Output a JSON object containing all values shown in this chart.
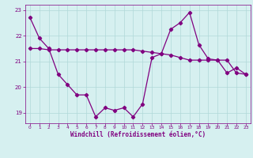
{
  "x": [
    0,
    1,
    2,
    3,
    4,
    5,
    6,
    7,
    8,
    9,
    10,
    11,
    12,
    13,
    14,
    15,
    16,
    17,
    18,
    19,
    20,
    21,
    22,
    23
  ],
  "windchill": [
    22.7,
    21.9,
    21.5,
    20.5,
    20.1,
    19.7,
    19.7,
    18.85,
    19.2,
    19.1,
    19.2,
    18.85,
    19.35,
    21.15,
    21.3,
    22.25,
    22.5,
    22.9,
    21.65,
    21.1,
    21.05,
    20.55,
    20.75,
    20.5
  ],
  "templine": [
    21.5,
    21.5,
    21.45,
    21.45,
    21.45,
    21.45,
    21.45,
    21.45,
    21.45,
    21.45,
    21.45,
    21.45,
    21.4,
    21.35,
    21.3,
    21.25,
    21.15,
    21.05,
    21.05,
    21.05,
    21.05,
    21.05,
    20.55,
    20.5
  ],
  "ylim": [
    18.6,
    23.2
  ],
  "xlim": [
    -0.5,
    23.5
  ],
  "yticks": [
    19,
    20,
    21,
    22,
    23
  ],
  "xticks": [
    0,
    1,
    2,
    3,
    4,
    5,
    6,
    7,
    8,
    9,
    10,
    11,
    12,
    13,
    14,
    15,
    16,
    17,
    18,
    19,
    20,
    21,
    22,
    23
  ],
  "xlabel": "Windchill (Refroidissement éolien,°C)",
  "line_color": "#800080",
  "bg_color": "#d6f0f0",
  "grid_color": "#b0d8d8",
  "tick_color": "#800080",
  "xlabel_color": "#800080",
  "marker": "D",
  "marker_size": 2.2,
  "linewidth": 0.9
}
